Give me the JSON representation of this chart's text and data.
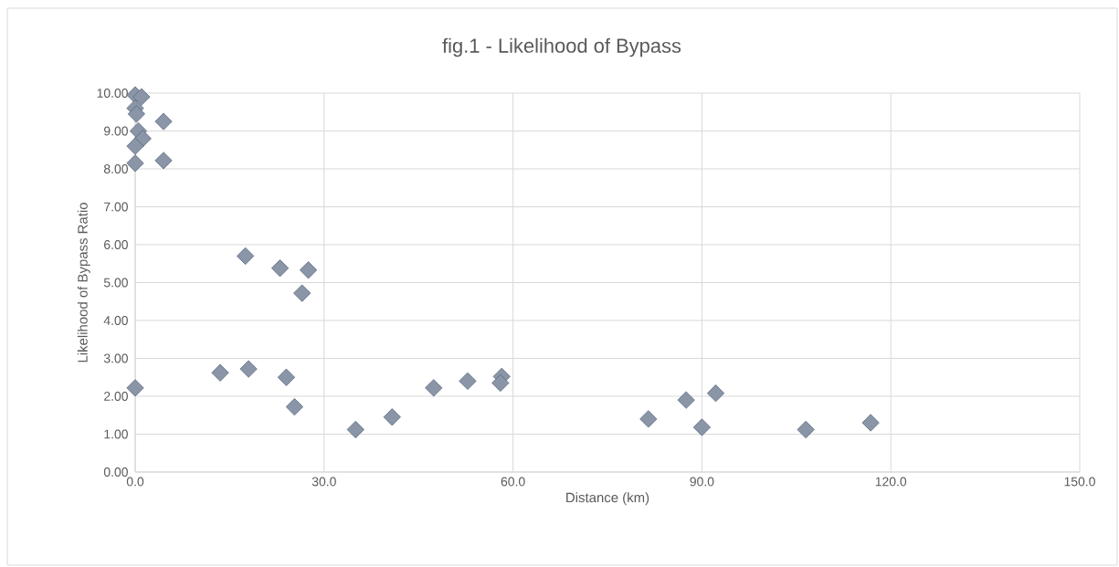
{
  "chart_data": {
    "type": "scatter",
    "title": "fig.1 - Likelihood of Bypass",
    "xlabel": "Distance (km)",
    "ylabel": "Likelihood of Bypass Ratio",
    "x": [
      0,
      1,
      0,
      0.2,
      0.5,
      1.2,
      0,
      0,
      4.5,
      4.5,
      0,
      17.5,
      23,
      27.5,
      26.5,
      13.5,
      18,
      24,
      25.3,
      35,
      40.8,
      47.4,
      52.8,
      58.2,
      58,
      81.5,
      87.5,
      90,
      92.2,
      106.5,
      116.8
    ],
    "values": [
      9.95,
      9.9,
      9.6,
      9.45,
      9.0,
      8.8,
      8.6,
      8.15,
      9.25,
      8.22,
      2.22,
      5.7,
      5.38,
      5.33,
      4.72,
      2.62,
      2.72,
      2.5,
      1.72,
      1.12,
      1.45,
      2.22,
      2.4,
      2.52,
      2.35,
      1.4,
      1.9,
      1.18,
      2.08,
      1.12,
      1.3
    ],
    "color": "#8a96a8",
    "marker": "diamond",
    "grid": true,
    "xlim": [
      0,
      150
    ],
    "ylim": [
      0,
      10
    ],
    "xticks": [
      {
        "value": 0,
        "label": "0.0"
      },
      {
        "value": 30,
        "label": "30.0"
      },
      {
        "value": 60,
        "label": "60.0"
      },
      {
        "value": 90,
        "label": "90.0"
      },
      {
        "value": 120,
        "label": "120.0"
      },
      {
        "value": 150,
        "label": "150.0"
      }
    ],
    "yticks": [
      {
        "value": 0,
        "label": "0.00"
      },
      {
        "value": 1,
        "label": "1.00"
      },
      {
        "value": 2,
        "label": "2.00"
      },
      {
        "value": 3,
        "label": "3.00"
      },
      {
        "value": 4,
        "label": "4.00"
      },
      {
        "value": 5,
        "label": "5.00"
      },
      {
        "value": 6,
        "label": "6.00"
      },
      {
        "value": 7,
        "label": "7.00"
      },
      {
        "value": 8,
        "label": "8.00"
      },
      {
        "value": 9,
        "label": "9.00"
      },
      {
        "value": 10,
        "label": "10.00"
      }
    ]
  }
}
